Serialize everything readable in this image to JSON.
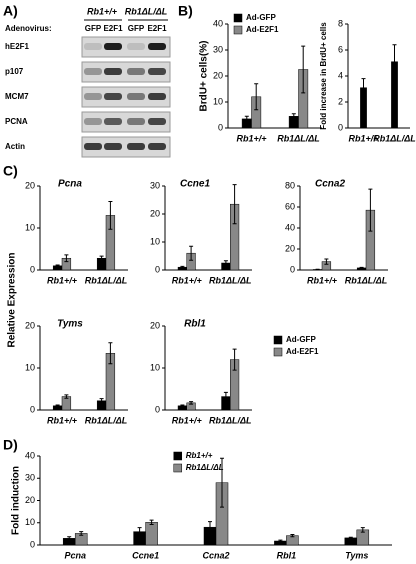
{
  "panel_labels": [
    "A)",
    "B)",
    "C)",
    "D)"
  ],
  "blot": {
    "genotypes": [
      "Rb1+/+",
      "Rb1ΔL/ΔL"
    ],
    "adenovirus_label": "Adenovirus:",
    "lanes": [
      "GFP",
      "E2F1",
      "GFP",
      "E2F1"
    ],
    "rows": [
      "hE2F1",
      "p107",
      "MCM7",
      "PCNA",
      "Actin"
    ]
  },
  "panel_c_ylabel": "Relative Expression",
  "chart_data": [
    {
      "type": "bar",
      "ylabel": "BrdU+ cells(%)",
      "categories": [
        "Rb1+/+",
        "Rb1ΔL/ΔL"
      ],
      "series": [
        {
          "name": "Ad-GFP",
          "color": "#000000",
          "values": [
            3.5,
            4.5
          ],
          "errors": [
            1,
            1
          ]
        },
        {
          "name": "Ad-E2F1",
          "color": "#888888",
          "values": [
            12,
            22.5
          ],
          "errors": [
            5,
            9
          ]
        }
      ],
      "ylim": [
        0,
        40
      ],
      "yticks": [
        0,
        10,
        20,
        30,
        40
      ],
      "legend": "upper left"
    },
    {
      "type": "bar",
      "ylabel": "Fold increase in BrdU+ cells",
      "categories": [
        "Rb1+/+",
        "Rb1ΔL/ΔL"
      ],
      "series": [
        {
          "color": "#000000",
          "values": [
            3.1,
            5.1
          ],
          "errors": [
            0.7,
            1.3
          ]
        }
      ],
      "ylim": [
        0,
        8
      ],
      "yticks": [
        0,
        2,
        4,
        6,
        8
      ]
    },
    {
      "type": "bar",
      "title": "Pcna",
      "categories": [
        "Rb1+/+",
        "Rb1ΔL/ΔL"
      ],
      "series": [
        {
          "color": "#000000",
          "values": [
            1,
            2.8
          ],
          "errors": [
            0.2,
            0.5
          ]
        },
        {
          "color": "#888888",
          "values": [
            2.8,
            13
          ],
          "errors": [
            0.8,
            3.3
          ]
        }
      ],
      "ylim": [
        0,
        20
      ],
      "yticks": [
        0,
        10,
        20
      ]
    },
    {
      "type": "bar",
      "title": "Ccne1",
      "categories": [
        "Rb1+/+",
        "Rb1ΔL/ΔL"
      ],
      "series": [
        {
          "color": "#000000",
          "values": [
            1,
            2.5
          ],
          "errors": [
            0.3,
            0.8
          ]
        },
        {
          "color": "#888888",
          "values": [
            6,
            23.5
          ],
          "errors": [
            2.5,
            7
          ]
        }
      ],
      "ylim": [
        0,
        30
      ],
      "yticks": [
        0,
        10,
        20,
        30
      ]
    },
    {
      "type": "bar",
      "title": "Ccna2",
      "categories": [
        "Rb1+/+",
        "Rb1ΔL/ΔL"
      ],
      "series": [
        {
          "color": "#000000",
          "values": [
            0.5,
            2
          ],
          "errors": [
            0.2,
            0.5
          ]
        },
        {
          "color": "#888888",
          "values": [
            8,
            57
          ],
          "errors": [
            2.5,
            20
          ]
        }
      ],
      "ylim": [
        0,
        80
      ],
      "yticks": [
        0,
        20,
        40,
        60,
        80
      ]
    },
    {
      "type": "bar",
      "title": "Tyms",
      "categories": [
        "Rb1+/+",
        "Rb1ΔL/ΔL"
      ],
      "series": [
        {
          "color": "#000000",
          "values": [
            1,
            2.2
          ],
          "errors": [
            0.2,
            0.5
          ]
        },
        {
          "color": "#888888",
          "values": [
            3.2,
            13.5
          ],
          "errors": [
            0.4,
            2.5
          ]
        }
      ],
      "ylim": [
        0,
        20
      ],
      "yticks": [
        0,
        10,
        20
      ]
    },
    {
      "type": "bar",
      "title": "Rbl1",
      "categories": [
        "Rb1+/+",
        "Rb1ΔL/ΔL"
      ],
      "series": [
        {
          "name": "Ad-GFP",
          "color": "#000000",
          "values": [
            1,
            3.2
          ],
          "errors": [
            0.2,
            1
          ]
        },
        {
          "name": "Ad-E2F1",
          "color": "#888888",
          "values": [
            1.7,
            12
          ],
          "errors": [
            0.3,
            2.5
          ]
        }
      ],
      "ylim": [
        0,
        20
      ],
      "yticks": [
        0,
        10,
        20
      ],
      "legend": "right"
    },
    {
      "type": "bar",
      "ylabel": "Fold induction",
      "categories": [
        "Pcna",
        "Ccne1",
        "Ccna2",
        "Rbl1",
        "Tyms"
      ],
      "series": [
        {
          "name": "Rb1+/+",
          "color": "#000000",
          "values": [
            3,
            6,
            8,
            1.8,
            3.2
          ],
          "errors": [
            0.7,
            1.8,
            2.5,
            0.4,
            0.3
          ]
        },
        {
          "name": "Rb1ΔL/ΔL",
          "color": "#888888",
          "values": [
            5.2,
            10.2,
            28,
            4.2,
            6.8
          ],
          "errors": [
            0.8,
            1,
            11,
            0.5,
            1
          ]
        }
      ],
      "ylim": [
        0,
        40
      ],
      "yticks": [
        0,
        10,
        20,
        30,
        40
      ],
      "legend": "upper center"
    }
  ]
}
